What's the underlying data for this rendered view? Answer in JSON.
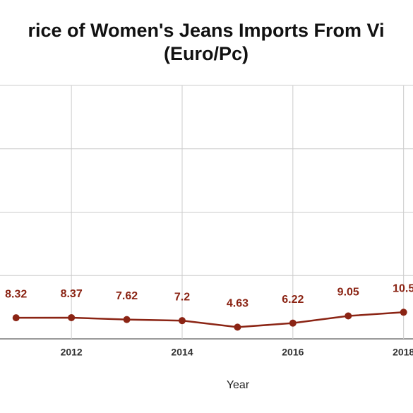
{
  "chart_data": {
    "type": "line",
    "title": [
      "rice of Women's Jeans Imports From Vi",
      "(Euro/Pc)"
    ],
    "x_label": "Year",
    "x": [
      2011,
      2012,
      2013,
      2014,
      2015,
      2016,
      2017,
      2018
    ],
    "series": [
      {
        "name": "Price",
        "color": "#8b2414",
        "values": [
          8.32,
          8.37,
          7.62,
          7.2,
          4.63,
          6.22,
          9.05,
          10.5
        ]
      }
    ],
    "xlim": [
      2010.71,
      2018.17
    ],
    "xticks": [
      2012,
      2014,
      2016,
      2018
    ],
    "ylim": [
      0,
      100
    ],
    "yticks": [
      0,
      25,
      50,
      75,
      100
    ],
    "grid": true
  }
}
